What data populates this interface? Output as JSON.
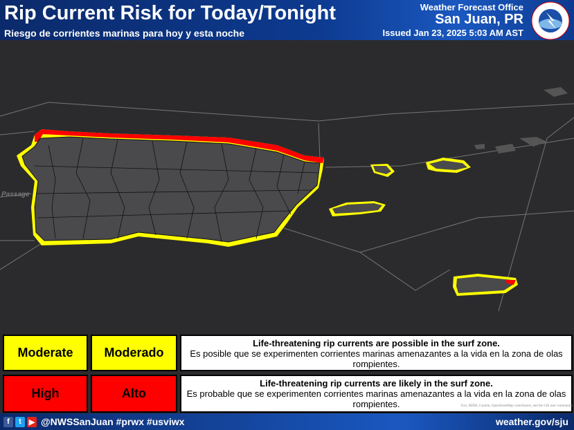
{
  "header": {
    "title": "Rip Current Risk for Today/Tonight",
    "subtitle": "Riesgo de corrientes marinas para hoy y esta noche",
    "office_label": "Weather Forecast Office",
    "office_city": "San Juan, PR",
    "issued": "Issued Jan 23, 2025 5:03 AM AST",
    "logo": "National Weather Service"
  },
  "map": {
    "label_passage": "Passage",
    "colors": {
      "moderate": "#ffff00",
      "high": "#ff0000",
      "land": "#4a4a4c",
      "water": "#2b2b2e"
    }
  },
  "legend": [
    {
      "en": "Moderate",
      "es": "Moderado",
      "color": "#ffff00",
      "desc_en": "Life-threatening rip currents are possible in the surf zone.",
      "desc_es": "Es posible que se experimenten corrientes marinas amenazantes a la vida en la zona de olas rompientes."
    },
    {
      "en": "High",
      "es": "Alto",
      "color": "#ff0000",
      "desc_en": "Life-threatening rip currents are likely in the surf zone.",
      "desc_es": "Es probable que se experimenten corrientes marinas amenazantes a la vida en la zona de olas rompientes."
    }
  ],
  "attribution": "Esri, HERE, Garmin, OpenStreetMap contributors, and the GIS user community",
  "footer": {
    "icons": [
      "facebook-icon",
      "twitter-icon",
      "youtube-icon"
    ],
    "social": "@NWSSanJuan #prwx #usviwx",
    "url": "weather.gov/sju"
  }
}
